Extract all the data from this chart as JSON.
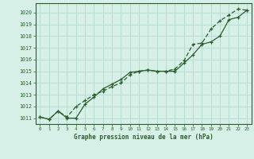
{
  "title": "Graphe pression niveau de la mer (hPa)",
  "bg_color": "#d6f0e8",
  "grid_color": "#b8ddd0",
  "line_color": "#2a5e2a",
  "xlim": [
    -0.5,
    23.5
  ],
  "ylim": [
    1010.5,
    1020.8
  ],
  "yticks": [
    1011,
    1012,
    1013,
    1014,
    1015,
    1016,
    1017,
    1018,
    1019,
    1020
  ],
  "xticks": [
    0,
    1,
    2,
    3,
    4,
    5,
    6,
    7,
    8,
    9,
    10,
    11,
    12,
    13,
    14,
    15,
    16,
    17,
    18,
    19,
    20,
    21,
    22,
    23
  ],
  "series1_x": [
    0,
    1,
    2,
    3,
    4,
    5,
    6,
    7,
    8,
    9,
    10,
    11,
    12,
    13,
    14,
    15,
    16,
    17,
    18,
    19,
    20,
    21,
    22,
    23
  ],
  "series1_y": [
    1011.1,
    1010.9,
    1011.6,
    1011.0,
    1011.0,
    1012.2,
    1012.8,
    1013.5,
    1013.9,
    1014.3,
    1014.9,
    1015.0,
    1015.1,
    1015.0,
    1015.0,
    1015.0,
    1015.7,
    1016.4,
    1017.3,
    1017.5,
    1018.0,
    1019.4,
    1019.6,
    1020.2
  ],
  "series2_x": [
    0,
    1,
    2,
    3,
    4,
    5,
    6,
    7,
    8,
    9,
    10,
    11,
    12,
    13,
    14,
    15,
    16,
    17,
    18,
    19,
    20,
    21,
    22,
    23
  ],
  "series2_y": [
    1011.1,
    1010.9,
    1011.6,
    1011.1,
    1012.0,
    1012.5,
    1013.0,
    1013.3,
    1013.7,
    1014.0,
    1014.7,
    1015.0,
    1015.1,
    1015.0,
    1015.0,
    1015.2,
    1015.9,
    1017.3,
    1017.4,
    1018.6,
    1019.3,
    1019.8,
    1020.3,
    1020.2
  ]
}
